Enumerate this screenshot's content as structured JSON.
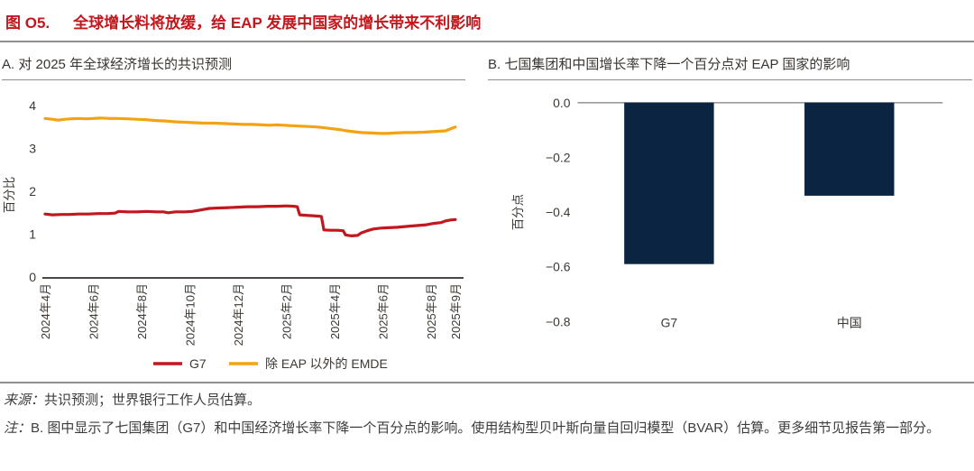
{
  "figure": {
    "label": "图 O5.",
    "title": "全球增长料将放缓，给 EAP 发展中国家的增长带来不利影响",
    "accent_color": "#c4161c"
  },
  "footer": {
    "source_label": "来源：",
    "source_text": "共识预测；世界银行工作人员估算。",
    "note_label": "注：",
    "note_text": "B. 图中显示了七国集团（G7）和中国经济增长率下降一个百分点的影响。使用结构型贝叶斯向量自回归模型（BVAR）估算。更多细节见报告第一部分。"
  },
  "chart_data": [
    {
      "type": "line",
      "title": "A. 对 2025 年全球经济增长的共识预测",
      "xlabel": "",
      "ylabel": "百分比",
      "ylim": [
        0,
        4
      ],
      "yticks": [
        "0",
        "1",
        "2",
        "3",
        "4"
      ],
      "ytick_values": [
        0,
        1,
        2,
        3,
        4
      ],
      "x_unit": "months since 2024-04",
      "xlim": [
        0,
        17
      ],
      "xticks": [
        {
          "pos": 0,
          "label": "2024年4月"
        },
        {
          "pos": 2,
          "label": "2024年6月"
        },
        {
          "pos": 4,
          "label": "2024年8月"
        },
        {
          "pos": 6,
          "label": "2024年10月"
        },
        {
          "pos": 8,
          "label": "2024年12月"
        },
        {
          "pos": 10,
          "label": "2025年2月"
        },
        {
          "pos": 12,
          "label": "2025年4月"
        },
        {
          "pos": 14,
          "label": "2025年6月"
        },
        {
          "pos": 16,
          "label": "2025年8月"
        },
        {
          "pos": 17,
          "label": "2025年9月"
        }
      ],
      "grid": false,
      "legend_position": "bottom",
      "series": [
        {
          "name": "G7",
          "color": "#c2171f",
          "points": [
            [
              0,
              1.47
            ],
            [
              0.3,
              1.45
            ],
            [
              0.7,
              1.46
            ],
            [
              1,
              1.46
            ],
            [
              1.4,
              1.47
            ],
            [
              1.8,
              1.47
            ],
            [
              2.2,
              1.48
            ],
            [
              2.6,
              1.48
            ],
            [
              2.9,
              1.49
            ],
            [
              3.05,
              1.53
            ],
            [
              3.4,
              1.52
            ],
            [
              3.8,
              1.52
            ],
            [
              4.2,
              1.53
            ],
            [
              4.6,
              1.52
            ],
            [
              4.9,
              1.52
            ],
            [
              5.1,
              1.5
            ],
            [
              5.4,
              1.52
            ],
            [
              5.8,
              1.52
            ],
            [
              6.1,
              1.53
            ],
            [
              6.4,
              1.56
            ],
            [
              6.8,
              1.6
            ],
            [
              7.2,
              1.61
            ],
            [
              7.6,
              1.62
            ],
            [
              8,
              1.63
            ],
            [
              8.4,
              1.64
            ],
            [
              8.8,
              1.64
            ],
            [
              9.2,
              1.65
            ],
            [
              9.6,
              1.65
            ],
            [
              10,
              1.66
            ],
            [
              10.3,
              1.65
            ],
            [
              10.45,
              1.64
            ],
            [
              10.55,
              1.45
            ],
            [
              10.8,
              1.44
            ],
            [
              11.1,
              1.43
            ],
            [
              11.35,
              1.42
            ],
            [
              11.45,
              1.41
            ],
            [
              11.55,
              1.1
            ],
            [
              11.8,
              1.09
            ],
            [
              12.1,
              1.09
            ],
            [
              12.35,
              1.08
            ],
            [
              12.45,
              0.98
            ],
            [
              12.7,
              0.96
            ],
            [
              12.95,
              0.97
            ],
            [
              13.1,
              1.03
            ],
            [
              13.35,
              1.08
            ],
            [
              13.6,
              1.12
            ],
            [
              13.9,
              1.14
            ],
            [
              14.2,
              1.15
            ],
            [
              14.6,
              1.16
            ],
            [
              15,
              1.18
            ],
            [
              15.4,
              1.2
            ],
            [
              15.8,
              1.22
            ],
            [
              16.1,
              1.25
            ],
            [
              16.4,
              1.27
            ],
            [
              16.6,
              1.31
            ],
            [
              16.8,
              1.33
            ],
            [
              17,
              1.34
            ]
          ]
        },
        {
          "name": "除 EAP 以外的 EMDE",
          "color": "#f3a212",
          "points": [
            [
              0,
              3.7
            ],
            [
              0.3,
              3.68
            ],
            [
              0.55,
              3.66
            ],
            [
              0.8,
              3.68
            ],
            [
              1.1,
              3.69
            ],
            [
              1.4,
              3.7
            ],
            [
              1.7,
              3.69
            ],
            [
              2,
              3.7
            ],
            [
              2.3,
              3.71
            ],
            [
              2.7,
              3.7
            ],
            [
              3,
              3.7
            ],
            [
              3.4,
              3.69
            ],
            [
              3.8,
              3.68
            ],
            [
              4.2,
              3.67
            ],
            [
              4.6,
              3.65
            ],
            [
              5,
              3.64
            ],
            [
              5.4,
              3.62
            ],
            [
              5.8,
              3.61
            ],
            [
              6.2,
              3.6
            ],
            [
              6.6,
              3.59
            ],
            [
              7,
              3.59
            ],
            [
              7.4,
              3.58
            ],
            [
              7.8,
              3.57
            ],
            [
              8.2,
              3.56
            ],
            [
              8.6,
              3.56
            ],
            [
              9,
              3.55
            ],
            [
              9.3,
              3.54
            ],
            [
              9.6,
              3.55
            ],
            [
              9.9,
              3.54
            ],
            [
              10.2,
              3.53
            ],
            [
              10.6,
              3.52
            ],
            [
              11,
              3.51
            ],
            [
              11.3,
              3.5
            ],
            [
              11.6,
              3.48
            ],
            [
              11.9,
              3.46
            ],
            [
              12.2,
              3.44
            ],
            [
              12.5,
              3.41
            ],
            [
              12.8,
              3.39
            ],
            [
              13.1,
              3.37
            ],
            [
              13.5,
              3.36
            ],
            [
              13.9,
              3.35
            ],
            [
              14.2,
              3.35
            ],
            [
              14.5,
              3.36
            ],
            [
              14.9,
              3.37
            ],
            [
              15.3,
              3.37
            ],
            [
              15.7,
              3.38
            ],
            [
              16,
              3.39
            ],
            [
              16.3,
              3.4
            ],
            [
              16.6,
              3.41
            ],
            [
              16.8,
              3.46
            ],
            [
              17,
              3.5
            ]
          ]
        }
      ]
    },
    {
      "type": "bar",
      "title": "B. 七国集团和中国增长率下降一个百分点对 EAP 国家的影响",
      "xlabel": "",
      "ylabel": "百分点",
      "categories": [
        "G7",
        "中国"
      ],
      "values": [
        -0.59,
        -0.34
      ],
      "ylim": [
        -0.8,
        0
      ],
      "yticks": [
        {
          "v": 0,
          "label": "0.0"
        },
        {
          "v": -0.2,
          "label": "−0.2"
        },
        {
          "v": -0.4,
          "label": "−0.4"
        },
        {
          "v": -0.6,
          "label": "−0.6"
        },
        {
          "v": -0.8,
          "label": "−0.8"
        }
      ],
      "grid": false,
      "bar_color": "#0a2442",
      "zero_line_color": "#9b9b9b"
    }
  ]
}
